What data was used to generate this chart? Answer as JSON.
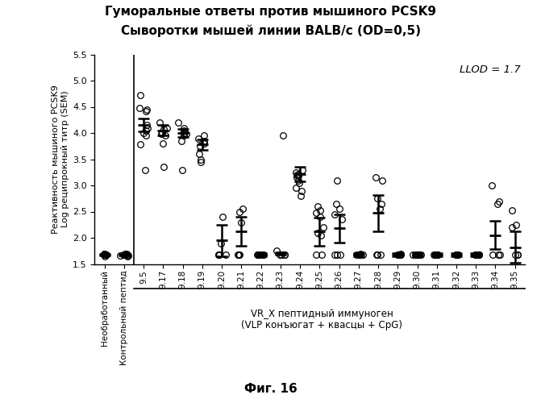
{
  "title_line1": "Гуморальные ответы против мышиного PCSK9",
  "title_line2": "Сыворотки мышей линии BALB/c (OD=0,5)",
  "ylabel_line1": "Реактивность мышиного PCSK9",
  "ylabel_line2": "Log реципрокный титр (SEM)",
  "xlabel_below_line1": "VR_X пептидный иммуноген",
  "xlabel_below_line2": "(VLP конъюгат + квасцы + CpG)",
  "figure_label": "Фиг. 16",
  "llod_label": "LLOD = 1.7",
  "llod_value": 1.7,
  "ylim": [
    1.5,
    5.5
  ],
  "yticks": [
    1.5,
    2.0,
    2.5,
    3.0,
    3.5,
    4.0,
    4.5,
    5.0,
    5.5
  ],
  "categories": [
    "Необработанный",
    "Контрольный пептид",
    "9.5",
    "9.17",
    "9.18",
    "9.19",
    "9.20",
    "9.21",
    "9.22",
    "9.23",
    "9.24",
    "9.25",
    "9.26",
    "9.27",
    "9.28",
    "9.29",
    "9.30",
    "9.31",
    "9.32",
    "9.33",
    "9.34",
    "9.35"
  ],
  "means": [
    1.68,
    1.68,
    4.15,
    4.05,
    4.0,
    3.78,
    1.95,
    2.12,
    1.68,
    1.7,
    3.22,
    2.12,
    2.18,
    1.68,
    2.47,
    1.68,
    1.68,
    1.68,
    1.68,
    1.68,
    2.05,
    1.82
  ],
  "sems": [
    0.02,
    0.02,
    0.12,
    0.1,
    0.08,
    0.1,
    0.3,
    0.28,
    0.03,
    0.03,
    0.14,
    0.27,
    0.27,
    0.03,
    0.35,
    0.03,
    0.03,
    0.03,
    0.03,
    0.03,
    0.27,
    0.3
  ],
  "scatter_points": {
    "Необработанный": [
      1.65,
      1.67,
      1.68,
      1.69,
      1.7,
      1.68,
      1.67
    ],
    "Контрольный пептид": [
      1.65,
      1.66,
      1.68,
      1.7,
      1.68,
      1.69,
      1.67,
      1.66
    ],
    "9.5": [
      4.73,
      4.47,
      4.45,
      4.42,
      4.15,
      4.1,
      4.05,
      4.0,
      3.95,
      3.78,
      3.3
    ],
    "9.17": [
      4.2,
      4.1,
      4.08,
      4.0,
      3.98,
      3.95,
      3.8,
      3.35
    ],
    "9.18": [
      4.2,
      4.1,
      4.05,
      4.0,
      3.98,
      3.95,
      3.85,
      3.3
    ],
    "9.19": [
      3.95,
      3.9,
      3.85,
      3.8,
      3.75,
      3.6,
      3.5,
      3.45
    ],
    "9.20": [
      2.4,
      1.9,
      1.68,
      1.68,
      1.68,
      1.68
    ],
    "9.21": [
      2.55,
      2.5,
      2.3,
      1.68,
      1.68,
      1.68
    ],
    "9.22": [
      1.68,
      1.68,
      1.68,
      1.68,
      1.68,
      1.68
    ],
    "9.23": [
      3.95,
      1.75,
      1.68,
      1.68,
      1.68,
      1.68
    ],
    "9.24": [
      3.3,
      3.25,
      3.22,
      3.2,
      3.18,
      3.15,
      3.1,
      3.05,
      2.95,
      2.9,
      2.8
    ],
    "9.25": [
      2.6,
      2.52,
      2.47,
      2.4,
      2.2,
      2.1,
      2.05,
      1.68,
      1.68
    ],
    "9.26": [
      3.1,
      2.65,
      2.55,
      2.45,
      2.35,
      1.68,
      1.68,
      1.68
    ],
    "9.27": [
      1.7,
      1.68,
      1.68,
      1.68,
      1.68,
      1.68
    ],
    "9.28": [
      3.15,
      3.1,
      2.75,
      2.65,
      2.55,
      1.68,
      1.68,
      1.68
    ],
    "9.29": [
      1.7,
      1.68,
      1.68,
      1.68,
      1.68,
      1.68
    ],
    "9.30": [
      1.68,
      1.68,
      1.68,
      1.68,
      1.68,
      1.68
    ],
    "9.31": [
      1.68,
      1.68,
      1.68,
      1.68,
      1.68,
      1.68
    ],
    "9.32": [
      1.68,
      1.68,
      1.68,
      1.68,
      1.68,
      1.68
    ],
    "9.33": [
      1.68,
      1.68,
      1.68,
      1.68,
      1.68,
      1.68
    ],
    "9.34": [
      3.0,
      2.7,
      2.65,
      1.68,
      1.68,
      1.68
    ],
    "9.35": [
      2.52,
      2.25,
      2.2,
      1.68,
      1.68,
      1.68
    ]
  },
  "bg_color": "#ffffff",
  "point_color": "#000000",
  "error_color": "#000000"
}
